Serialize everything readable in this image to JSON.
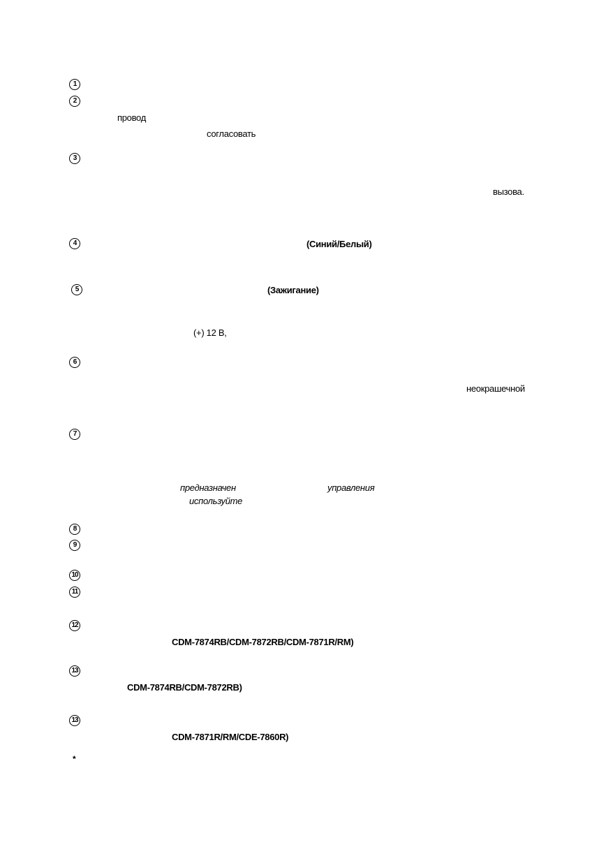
{
  "markers": [
    "1",
    "2",
    "3",
    "4",
    "5",
    "6",
    "7",
    "8",
    "9",
    "10",
    "11",
    "12",
    "13",
    "13"
  ],
  "footnote_marker": "*",
  "fragments": {
    "wire": "провод",
    "match": "согласовать",
    "call": "вызова.",
    "blue_white": "(Синий/Белый)",
    "ignition": "(Зажигание)",
    "plus12v": "(+) 12 В,",
    "unpainted": "неокрашечной",
    "intended": "предназначен",
    "control": "управления",
    "use": "используйте",
    "models_12": "CDM-7874RB/CDM-7872RB/CDM-7871R/RM)",
    "models_13a": "CDM-7874RB/CDM-7872RB)",
    "models_13b": "CDM-7871R/RM/CDE-7860R)"
  }
}
